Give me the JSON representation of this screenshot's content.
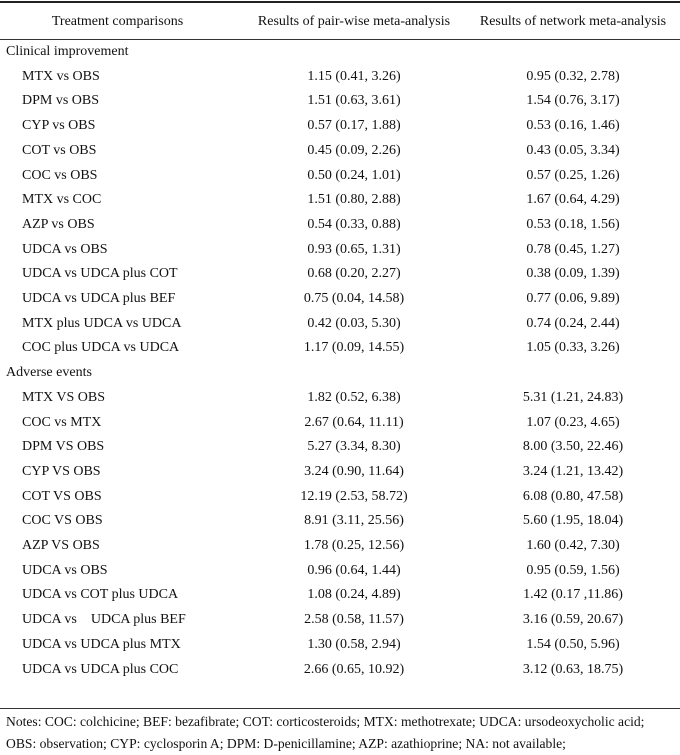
{
  "header": {
    "col1": "Treatment comparisons",
    "col2": "Results of pair-wise meta-analysis",
    "col3": "Results of network meta-analysis"
  },
  "sections": [
    {
      "title": "Clinical improvement",
      "rows": [
        {
          "comparison": "MTX vs OBS",
          "pairwise": "1.15 (0.41, 3.26)",
          "network": "0.95 (0.32, 2.78)"
        },
        {
          "comparison": "DPM vs OBS",
          "pairwise": "1.51 (0.63, 3.61)",
          "network": "1.54 (0.76, 3.17)"
        },
        {
          "comparison": "CYP vs OBS",
          "pairwise": "0.57 (0.17, 1.88)",
          "network": "0.53 (0.16, 1.46)"
        },
        {
          "comparison": "COT vs OBS",
          "pairwise": "0.45 (0.09, 2.26)",
          "network": "0.43 (0.05, 3.34)"
        },
        {
          "comparison": "COC vs OBS",
          "pairwise": "0.50 (0.24, 1.01)",
          "network": "0.57 (0.25, 1.26)"
        },
        {
          "comparison": "MTX vs COC",
          "pairwise": "1.51 (0.80, 2.88)",
          "network": "1.67 (0.64, 4.29)"
        },
        {
          "comparison": "AZP vs OBS",
          "pairwise": "0.54 (0.33, 0.88)",
          "network": "0.53 (0.18, 1.56)"
        },
        {
          "comparison": "UDCA vs OBS",
          "pairwise": "0.93 (0.65, 1.31)",
          "network": "0.78 (0.45, 1.27)"
        },
        {
          "comparison": "UDCA vs UDCA plus COT",
          "pairwise": "0.68 (0.20, 2.27)",
          "network": "0.38 (0.09, 1.39)"
        },
        {
          "comparison": "UDCA vs UDCA plus BEF",
          "pairwise": "0.75 (0.04, 14.58)",
          "network": "0.77 (0.06, 9.89)"
        },
        {
          "comparison": "MTX plus UDCA vs UDCA",
          "pairwise": "0.42 (0.03, 5.30)",
          "network": "0.74 (0.24, 2.44)"
        },
        {
          "comparison": "COC plus UDCA vs UDCA",
          "pairwise": "1.17 (0.09, 14.55)",
          "network": "1.05 (0.33, 3.26)"
        }
      ]
    },
    {
      "title": "Adverse events",
      "rows": [
        {
          "comparison": "MTX VS OBS",
          "pairwise": "1.82 (0.52, 6.38)",
          "network": "5.31 (1.21, 24.83)"
        },
        {
          "comparison": "COC vs MTX",
          "pairwise": "2.67 (0.64, 11.11)",
          "network": "1.07 (0.23, 4.65)"
        },
        {
          "comparison": "DPM VS OBS",
          "pairwise": "5.27 (3.34, 8.30)",
          "network": "8.00 (3.50, 22.46)"
        },
        {
          "comparison": "CYP VS OBS",
          "pairwise": "3.24 (0.90, 11.64)",
          "network": "3.24 (1.21, 13.42)"
        },
        {
          "comparison": "COT VS OBS",
          "pairwise": "12.19 (2.53, 58.72)",
          "network": "6.08 (0.80, 47.58)"
        },
        {
          "comparison": "COC VS OBS",
          "pairwise": "8.91 (3.11, 25.56)",
          "network": "5.60 (1.95, 18.04)"
        },
        {
          "comparison": "AZP VS OBS",
          "pairwise": "1.78 (0.25, 12.56)",
          "network": "1.60 (0.42, 7.30)"
        },
        {
          "comparison": "UDCA vs OBS",
          "pairwise": "0.96 (0.64, 1.44)",
          "network": "0.95 (0.59, 1.56)"
        },
        {
          "comparison": "UDCA vs COT plus UDCA",
          "pairwise": "1.08 (0.24, 4.89)",
          "network": "1.42 (0.17 ,11.86)"
        },
        {
          "comparison": "UDCA vs    UDCA plus BEF",
          "pairwise": "2.58 (0.58, 11.57)",
          "network": "3.16 (0.59, 20.67)"
        },
        {
          "comparison": "UDCA vs UDCA plus MTX",
          "pairwise": "1.30 (0.58, 2.94)",
          "network": "1.54 (0.50, 5.96)"
        },
        {
          "comparison": "UDCA vs UDCA plus COC",
          "pairwise": "2.66 (0.65, 10.92)",
          "network": "3.12 (0.63, 18.75)"
        }
      ]
    }
  ],
  "notes": "Notes: COC: colchicine; BEF: bezafibrate; COT: corticosteroids; MTX: methotrexate; UDCA: ursodeoxycholic acid; OBS: observation; CYP: cyclosporin A; DPM: D-penicillamine; AZP: azathioprine; NA: not available;"
}
